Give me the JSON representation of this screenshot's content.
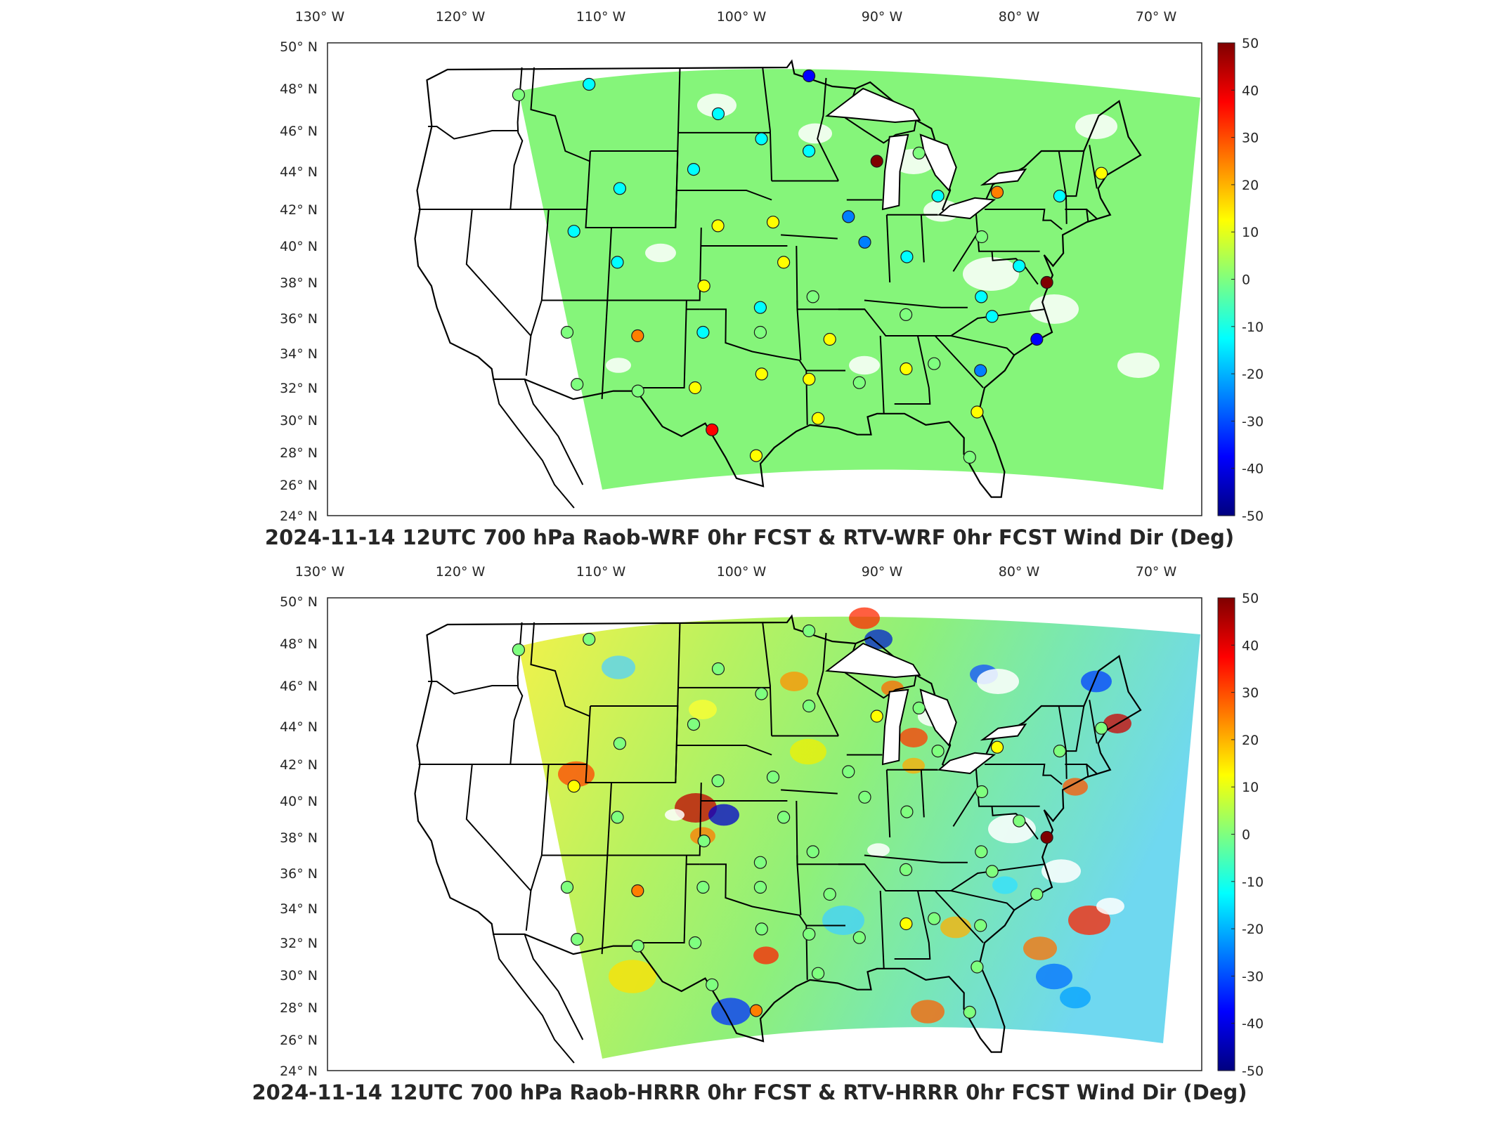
{
  "maps": [
    {
      "title": "2024-11-14 12UTC 700 hPa Raob-WRF 0hr FCST & RTV-WRF 0hr FCST Wind Dir (Deg)",
      "field_style": "uniform-green"
    },
    {
      "title": "2024-11-14 12UTC 700 hPa Raob-HRRR 0hr FCST & RTV-HRRR 0hr FCST Wind Dir (Deg)",
      "field_style": "mottled"
    }
  ],
  "lon_labels": [
    "130",
    "120",
    "110",
    "100",
    "90",
    "80",
    "70"
  ],
  "lon_hemi": "W",
  "lat_labels": [
    "50",
    "48",
    "46",
    "44",
    "42",
    "40",
    "38",
    "36",
    "34",
    "32",
    "30",
    "28",
    "26",
    "24"
  ],
  "lat_hemi": "N",
  "colorbar": {
    "ticks": [
      "50",
      "40",
      "30",
      "20",
      "10",
      "0",
      "-10",
      "-20",
      "-30",
      "-40",
      "-50"
    ],
    "colors": [
      "#7f0000",
      "#ff0000",
      "#ff7f00",
      "#ffff00",
      "#7fff7f",
      "#00ffff",
      "#007fff",
      "#0000ff",
      "#00007f"
    ],
    "min": -50,
    "max": 50
  },
  "stations": [
    {
      "lon": -117.1,
      "lat": 47.7,
      "v1": 4,
      "v2": 4
    },
    {
      "lon": -111.4,
      "lat": 48.2,
      "v1": -12,
      "v2": 3
    },
    {
      "lon": -100.8,
      "lat": 46.8,
      "v1": -15,
      "v2": 3
    },
    {
      "lon": -97.3,
      "lat": 45.6,
      "v1": -12,
      "v2": 4
    },
    {
      "lon": -93.4,
      "lat": 48.6,
      "v1": -28,
      "v2": -5
    },
    {
      "lon": -93.5,
      "lat": 45.0,
      "v1": -11,
      "v2": 4
    },
    {
      "lon": -88.1,
      "lat": 44.5,
      "v1": 48,
      "v2": 12
    },
    {
      "lon": -84.7,
      "lat": 44.9,
      "v1": 3,
      "v2": 3
    },
    {
      "lon": -83.4,
      "lat": 42.7,
      "v1": -13,
      "v2": 5
    },
    {
      "lon": -78.7,
      "lat": 42.9,
      "v1": 25,
      "v2": 8
    },
    {
      "lon": -73.8,
      "lat": 42.7,
      "v1": -8,
      "v2": 4
    },
    {
      "lon": -70.3,
      "lat": 43.9,
      "v1": 12,
      "v2": 5
    },
    {
      "lon": -108.5,
      "lat": 43.1,
      "v1": -12,
      "v2": 3
    },
    {
      "lon": -102.7,
      "lat": 44.1,
      "v1": -11,
      "v2": 3
    },
    {
      "lon": -111.9,
      "lat": 40.8,
      "v1": -7,
      "v2": 8
    },
    {
      "lon": -100.7,
      "lat": 41.1,
      "v1": 8,
      "v2": 3
    },
    {
      "lon": -96.4,
      "lat": 41.3,
      "v1": 12,
      "v2": 4
    },
    {
      "lon": -90.5,
      "lat": 41.6,
      "v1": -20,
      "v2": 3
    },
    {
      "lon": -89.3,
      "lat": 40.2,
      "v1": -18,
      "v2": 5
    },
    {
      "lon": -86.1,
      "lat": 39.4,
      "v1": -8,
      "v2": -3
    },
    {
      "lon": -80.2,
      "lat": 40.5,
      "v1": 4,
      "v2": 4
    },
    {
      "lon": -108.4,
      "lat": 39.1,
      "v1": -8,
      "v2": 5
    },
    {
      "lon": -101.7,
      "lat": 37.8,
      "v1": 10,
      "v2": 4
    },
    {
      "lon": -95.6,
      "lat": 39.1,
      "v1": 6,
      "v2": 3
    },
    {
      "lon": -97.4,
      "lat": 36.6,
      "v1": -6,
      "v2": 3
    },
    {
      "lon": -93.4,
      "lat": 37.2,
      "v1": -3,
      "v2": 3
    },
    {
      "lon": -86.4,
      "lat": 36.2,
      "v1": -2,
      "v2": 4
    },
    {
      "lon": -80.6,
      "lat": 37.2,
      "v1": -7,
      "v2": 4
    },
    {
      "lon": -77.5,
      "lat": 38.9,
      "v1": -6,
      "v2": 4
    },
    {
      "lon": -75.5,
      "lat": 38.0,
      "v1": 50,
      "v2": 50
    },
    {
      "lon": -79.9,
      "lat": 36.1,
      "v1": -6,
      "v2": 3
    },
    {
      "lon": -76.7,
      "lat": 34.8,
      "v1": -30,
      "v2": 3
    },
    {
      "lon": -111.9,
      "lat": 35.2,
      "v1": 3,
      "v2": 3
    },
    {
      "lon": -106.6,
      "lat": 35.0,
      "v1": 18,
      "v2": 25
    },
    {
      "lon": -101.7,
      "lat": 35.2,
      "v1": -8,
      "v2": 3
    },
    {
      "lon": -97.4,
      "lat": 35.2,
      "v1": -3,
      "v2": 4
    },
    {
      "lon": -92.2,
      "lat": 34.8,
      "v1": 10,
      "v2": 3
    },
    {
      "lon": -110.9,
      "lat": 32.2,
      "v1": 4,
      "v2": 5
    },
    {
      "lon": -106.4,
      "lat": 31.8,
      "v1": 3,
      "v2": 3
    },
    {
      "lon": -102.2,
      "lat": 32.0,
      "v1": 8,
      "v2": 3
    },
    {
      "lon": -97.3,
      "lat": 32.8,
      "v1": 6,
      "v2": 3
    },
    {
      "lon": -93.8,
      "lat": 32.5,
      "v1": 8,
      "v2": 3
    },
    {
      "lon": -90.1,
      "lat": 32.3,
      "v1": 2,
      "v2": 3
    },
    {
      "lon": -86.6,
      "lat": 33.1,
      "v1": 12,
      "v2": 6
    },
    {
      "lon": -84.5,
      "lat": 33.4,
      "v1": 5,
      "v2": 4
    },
    {
      "lon": -81.1,
      "lat": 33.0,
      "v1": -20,
      "v2": 4
    },
    {
      "lon": -100.9,
      "lat": 29.4,
      "v1": 30,
      "v2": 4
    },
    {
      "lon": -97.7,
      "lat": 27.8,
      "v1": 15,
      "v2": 25
    },
    {
      "lon": -93.2,
      "lat": 30.1,
      "v1": 8,
      "v2": 4
    },
    {
      "lon": -81.6,
      "lat": 30.5,
      "v1": 8,
      "v2": 3
    },
    {
      "lon": -82.4,
      "lat": 27.7,
      "v1": 3,
      "v2": 3
    }
  ]
}
